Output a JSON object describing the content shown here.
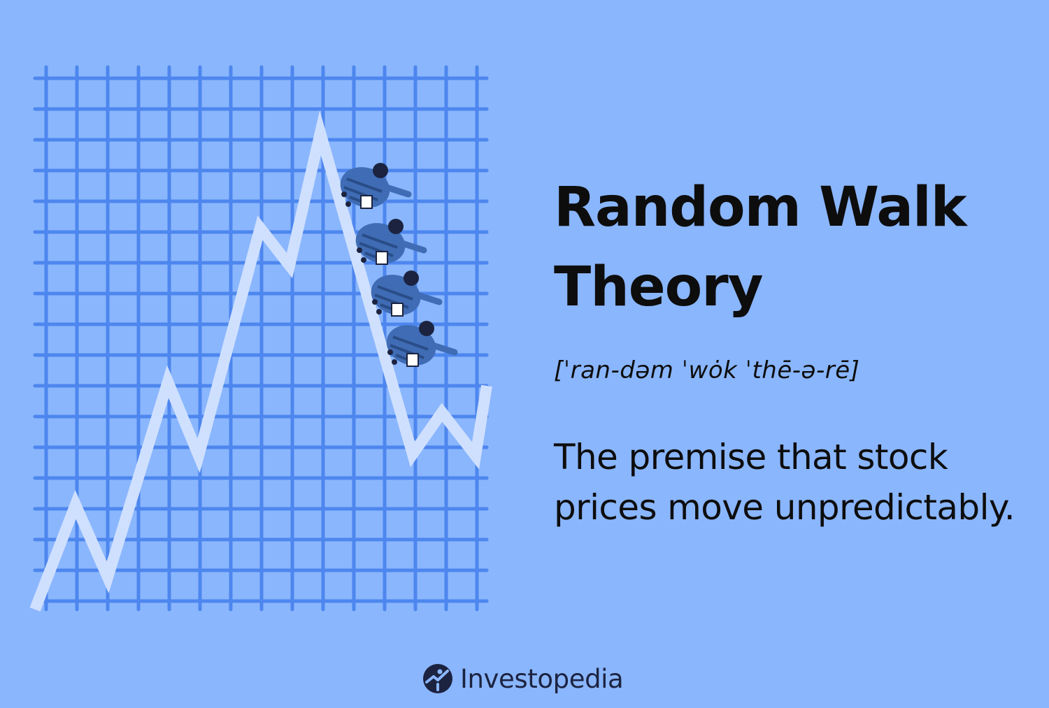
{
  "content": {
    "title": "Random Walk Theory",
    "pronunciation": "[ˈran-dəm ˈwȯk ˈthē-ə-rē]",
    "definition": "The premise that stock prices move unpredictably."
  },
  "brand": {
    "name": "Investopedia",
    "icon": "investopedia-logo-icon"
  },
  "colors": {
    "background": "#8ab6fd",
    "grid": "#4d86ee",
    "line": "#cfe0ff",
    "text": "#0d0d0d",
    "figures": "#3f6cb4"
  }
}
